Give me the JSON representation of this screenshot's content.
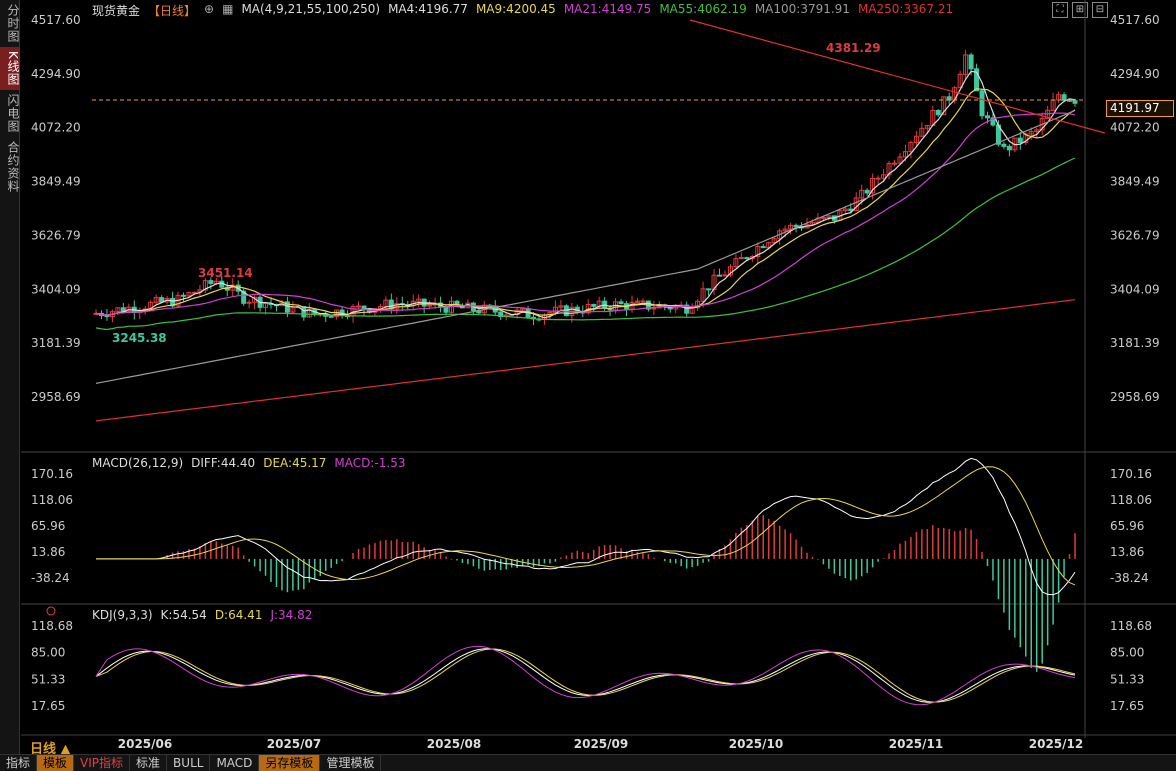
{
  "sidebar": {
    "items": [
      {
        "label": "分时图"
      },
      {
        "label": "K线图"
      },
      {
        "label": "闪电图"
      },
      {
        "label": "合约资料"
      }
    ]
  },
  "header": {
    "symbol": "现货黄金",
    "period": "【日线】",
    "ma_params": "MA(4,9,21,55,100,250)",
    "ma_values": [
      {
        "text": "MA4:4196.77",
        "color": "#dddddd"
      },
      {
        "text": "MA9:4200.45",
        "color": "#e8d84a"
      },
      {
        "text": "MA21:4149.75",
        "color": "#d040d0"
      },
      {
        "text": "MA55:4062.19",
        "color": "#40c040"
      },
      {
        "text": "MA100:3791.91",
        "color": "#9a9a9a"
      },
      {
        "text": "MA250:3367.21",
        "color": "#e03030"
      }
    ]
  },
  "price_axis": {
    "labels": [
      "4517.60",
      "4294.90",
      "4072.20",
      "3849.49",
      "3626.79",
      "3404.09",
      "3181.39",
      "2958.69"
    ],
    "current_price": "4191.97"
  },
  "annotations": {
    "high": "4381.29",
    "mid_high": "3451.14",
    "low": "3245.38"
  },
  "macd": {
    "title": "MACD(26,12,9)",
    "diff": "DIFF:44.40",
    "dea": "DEA:45.17",
    "macd": "MACD:-1.53",
    "axis_labels": [
      "170.16",
      "118.06",
      "65.96",
      "13.86",
      "-38.24"
    ]
  },
  "kdj": {
    "title": "KDJ(9,3,3)",
    "k": "K:54.54",
    "d": "D:64.41",
    "j": "J:34.82",
    "axis_labels": [
      "118.68",
      "85.00",
      "51.33",
      "17.65"
    ]
  },
  "time_axis": {
    "labels": [
      "2025/06",
      "2025/07",
      "2025/08",
      "2025/09",
      "2025/10",
      "2025/11",
      "2025/12"
    ]
  },
  "period_label": "日线",
  "bottom_tabs": [
    {
      "label": "指标"
    },
    {
      "label": "模板"
    },
    {
      "label": "VIP指标"
    },
    {
      "label": "标准"
    },
    {
      "label": "BULL"
    },
    {
      "label": "MACD"
    },
    {
      "label": "另存模板"
    },
    {
      "label": "管理模板"
    }
  ],
  "colors": {
    "up": "#e03b3b",
    "down": "#3cc8a0",
    "ma4": "#dddddd",
    "ma9": "#e8d84a",
    "ma21": "#d040d0",
    "ma55": "#40c040",
    "ma100": "#9a9a9a",
    "ma250": "#e03030",
    "accent": "#f0a020"
  }
}
